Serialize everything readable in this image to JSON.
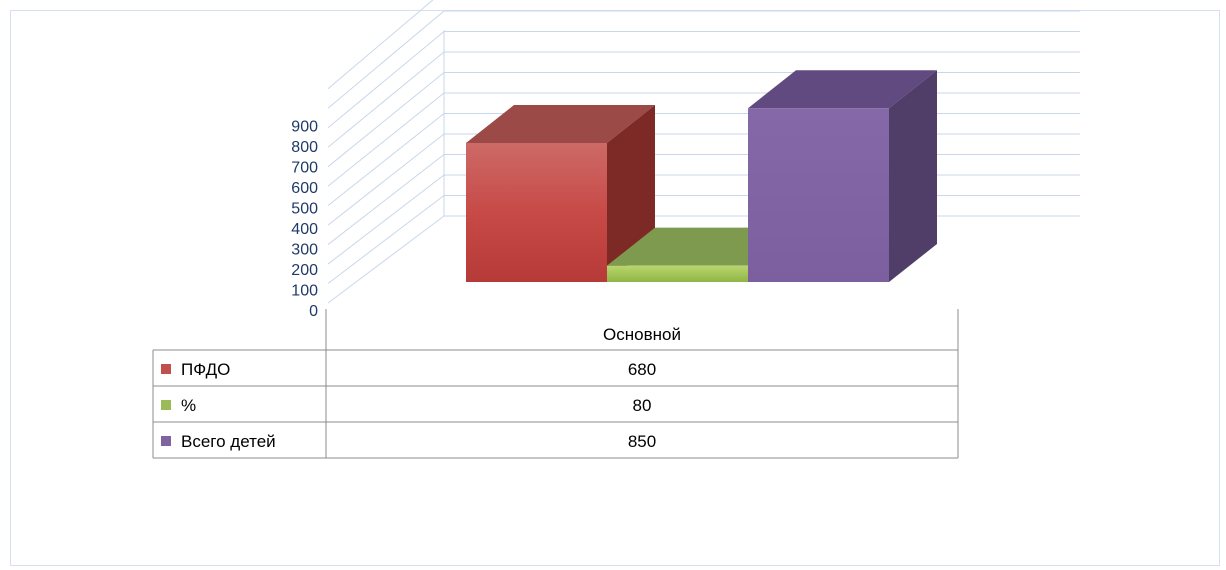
{
  "chart_data": {
    "type": "bar",
    "categories": [
      "Основной"
    ],
    "series": [
      {
        "name": "ПФДО",
        "values": [
          680
        ],
        "color": "#c0504d"
      },
      {
        "name": "%",
        "values": [
          80
        ],
        "color": "#9bbb59"
      },
      {
        "name": "Всего детей",
        "values": [
          850
        ],
        "color": "#8064a2"
      }
    ],
    "y_ticks": [
      "0",
      "100",
      "200",
      "300",
      "400",
      "500",
      "600",
      "700",
      "800",
      "900"
    ],
    "ylim": [
      0,
      900
    ],
    "three_d": true,
    "grid": true,
    "legend": "data-table-left",
    "data_table": {
      "header": "Основной",
      "rows": [
        {
          "label": "ПФДО",
          "value": "680"
        },
        {
          "label": "%",
          "value": "80"
        },
        {
          "label": "Всего детей",
          "value": "850"
        }
      ]
    }
  }
}
